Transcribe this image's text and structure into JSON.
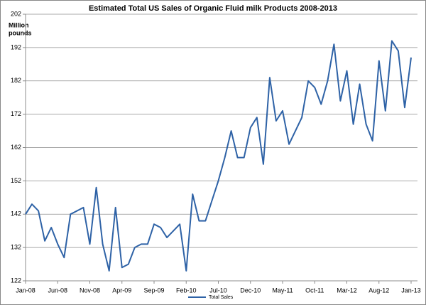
{
  "chart_data": {
    "type": "line",
    "title": "Estimated Total US Sales of Organic Fluid milk Products 2008-2013",
    "y_label": [
      "Million",
      "pounds"
    ],
    "categories": [
      "Jan-08",
      null,
      null,
      null,
      null,
      "Jun-08",
      null,
      null,
      null,
      null,
      "Nov-08",
      null,
      null,
      null,
      null,
      "Apr-09",
      null,
      null,
      null,
      null,
      "Sep-09",
      null,
      null,
      null,
      null,
      "Feb-10",
      null,
      null,
      null,
      null,
      "Jul-10",
      null,
      null,
      null,
      null,
      "Dec-10",
      null,
      null,
      null,
      null,
      "May-11",
      null,
      null,
      null,
      null,
      "Oct-11",
      null,
      null,
      null,
      null,
      "Mar-12",
      null,
      null,
      null,
      null,
      "Aug-12",
      null,
      null,
      null,
      null,
      "Jan-13"
    ],
    "series": [
      {
        "name": "Total Sales",
        "color": "#2e62a6",
        "values": [
          142,
          145,
          143,
          134,
          138,
          133,
          129,
          142,
          143,
          144,
          133,
          150,
          133,
          125,
          144,
          126,
          127,
          132,
          133,
          133,
          139,
          138,
          135,
          137,
          139,
          125,
          148,
          140,
          140,
          146,
          152,
          159,
          167,
          159,
          159,
          168,
          171,
          157,
          183,
          170,
          173,
          163,
          167,
          171,
          182,
          180,
          175,
          182,
          193,
          176,
          185,
          169,
          181,
          169,
          164,
          188,
          173,
          194,
          191,
          174,
          189
        ]
      }
    ],
    "ylim": [
      122,
      202
    ],
    "yticks": [
      122,
      132,
      142,
      152,
      162,
      172,
      182,
      192,
      202
    ],
    "grid": true,
    "legend": "bottom"
  }
}
